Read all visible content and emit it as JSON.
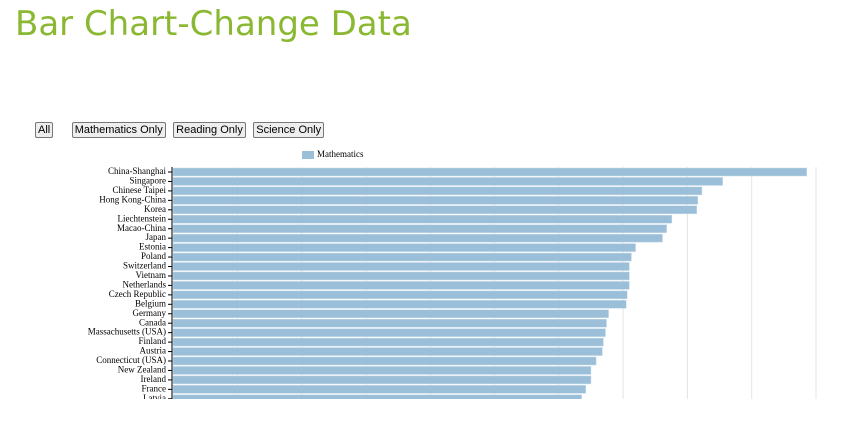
{
  "page": {
    "title": "Bar Chart-Change Data",
    "buttons": [
      "All",
      "Mathematics Only",
      "Reading Only",
      "Science Only"
    ]
  },
  "chart_data": {
    "type": "bar",
    "orientation": "horizontal",
    "categories": [
      "China-Shanghai",
      "Singapore",
      "Chinese Taipei",
      "Hong Kong-China",
      "Korea",
      "Liechtenstein",
      "Macao-China",
      "Japan",
      "Estonia",
      "Poland",
      "Switzerland",
      "Vietnam",
      "Netherlands",
      "Czech Republic",
      "Belgium",
      "Germany",
      "Canada",
      "Massachusetts (USA)",
      "Finland",
      "Austria",
      "Connecticut (USA)",
      "New Zealand",
      "Ireland",
      "France",
      "Latvia"
    ],
    "series": [
      {
        "name": "Mathematics",
        "color": "#9bbfd8",
        "values": [
          611,
          530,
          510,
          506,
          505,
          481,
          476,
          472,
          446,
          442,
          440,
          440,
          440,
          438,
          437,
          420,
          418,
          417,
          415,
          414,
          408,
          403,
          403,
          398,
          394
        ]
      }
    ],
    "xlim": [
      0,
      620
    ],
    "xticks": [
      62,
      124,
      186,
      248,
      310,
      372,
      434,
      496,
      558,
      620
    ],
    "grid": true
  }
}
